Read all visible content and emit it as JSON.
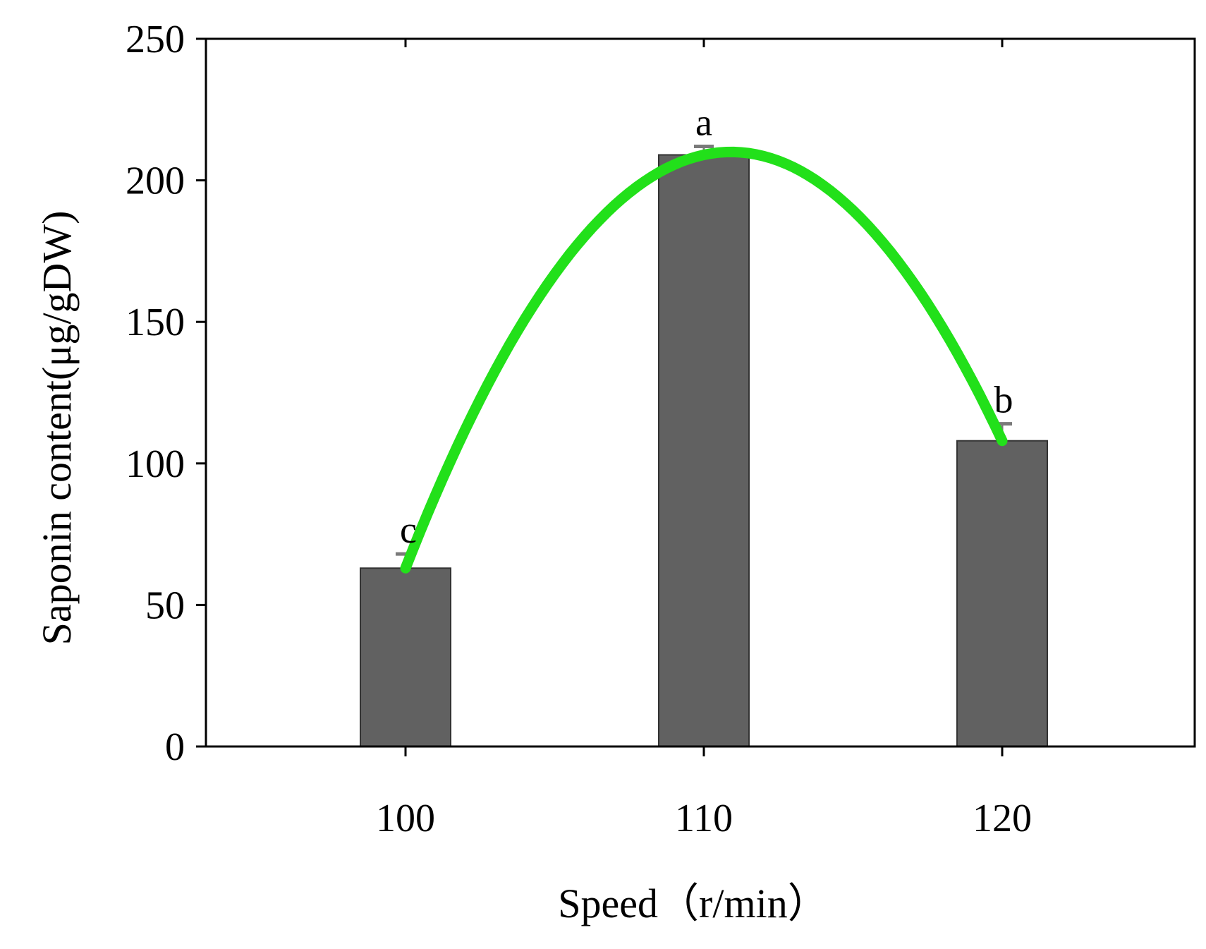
{
  "chart_data": {
    "type": "bar",
    "title": "",
    "xlabel": "Speed（r/min）",
    "ylabel": "Saponin content(μg/gDW)",
    "categories": [
      "100",
      "110",
      "120"
    ],
    "values": [
      63,
      209,
      108
    ],
    "error": [
      5,
      3,
      6
    ],
    "significance": [
      "c",
      "a",
      "b"
    ],
    "ylim": [
      0,
      250
    ],
    "yticks": [
      0,
      50,
      100,
      150,
      200,
      250
    ],
    "grid": false,
    "legend": "none",
    "bar_color": "#616161",
    "trend_color": "#22e01a",
    "trend_line": "quadratic fit through bar tops"
  }
}
